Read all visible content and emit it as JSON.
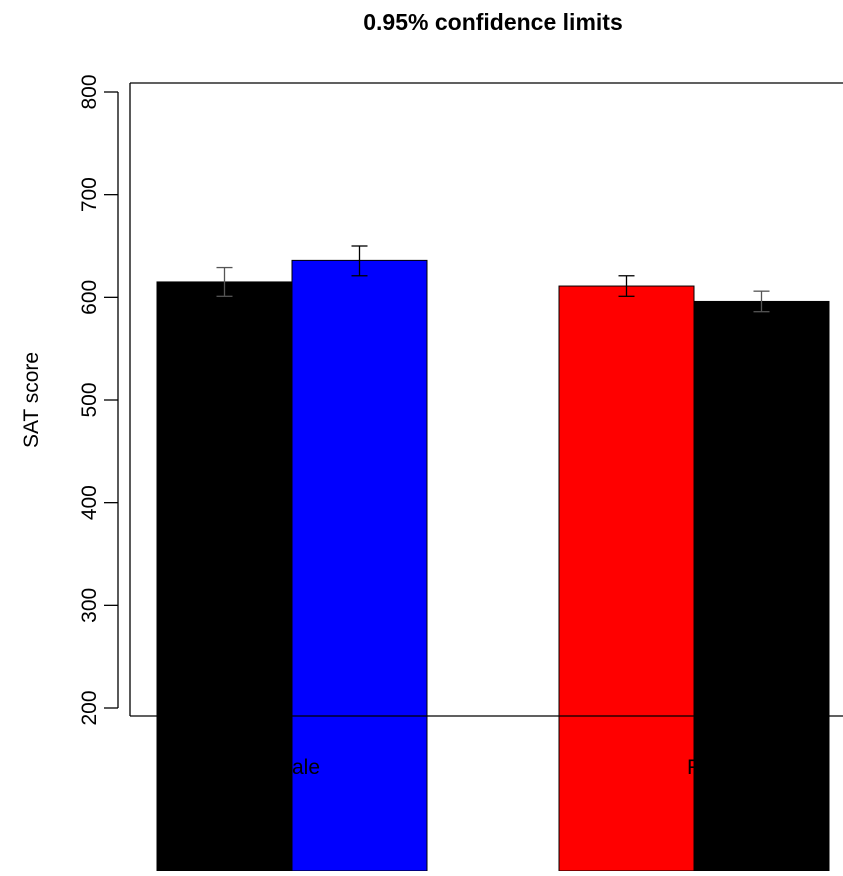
{
  "chart_data": {
    "type": "bar",
    "title": "0.95% confidence limits",
    "ylabel": "SAT score",
    "xlabel": "",
    "ylim": [
      200,
      800
    ],
    "yticks": [
      200,
      300,
      400,
      500,
      600,
      700,
      800
    ],
    "categories": [
      "Male",
      "Female"
    ],
    "category_labels_visible": [
      "ale",
      "Fem"
    ],
    "grid": false,
    "bars": [
      {
        "category": "Male",
        "value": 615,
        "ci": [
          601,
          629
        ],
        "color": "#000000"
      },
      {
        "category": "Male",
        "value": 636,
        "ci": [
          621,
          650
        ],
        "color": "#0000ff"
      },
      {
        "category": "Female",
        "value": 611,
        "ci": [
          601,
          621
        ],
        "color": "#ff0000"
      },
      {
        "category": "Female",
        "value": 596,
        "ci": [
          586,
          606
        ],
        "color": "#000000"
      }
    ]
  }
}
